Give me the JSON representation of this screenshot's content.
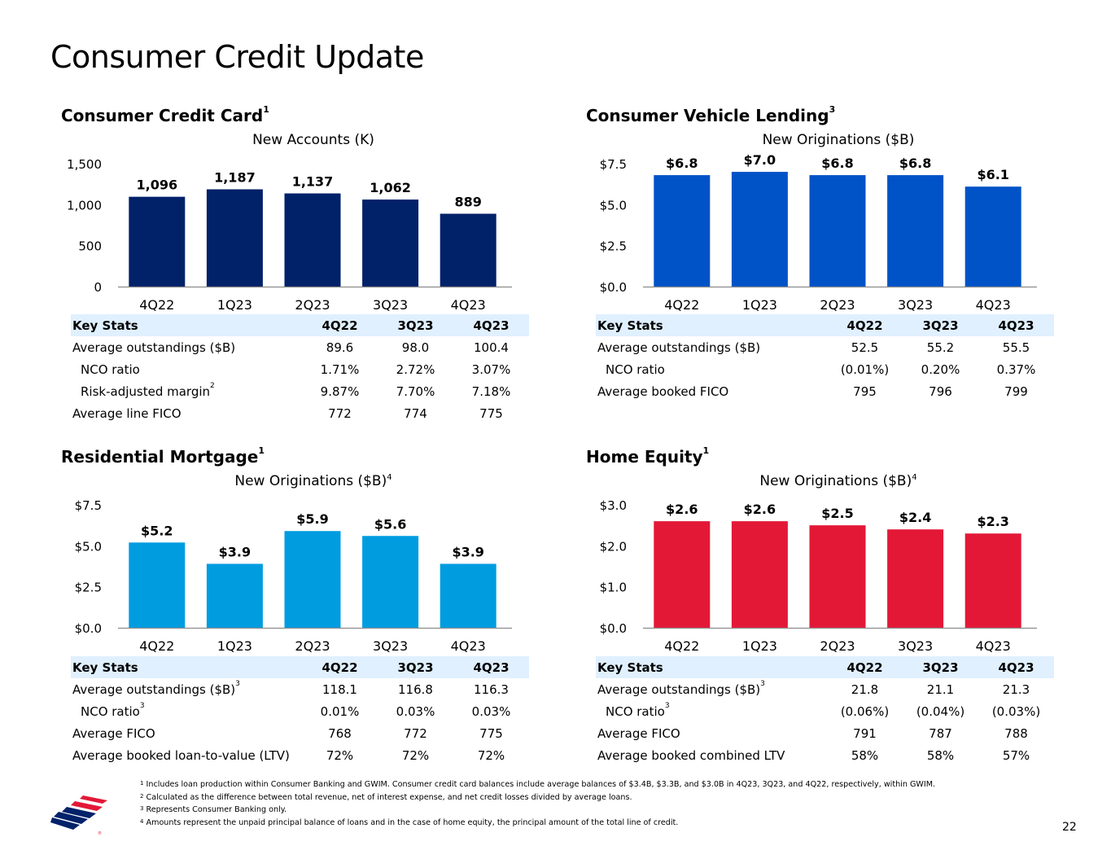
{
  "title": "Consumer Credit Update",
  "page_number": "22",
  "colors": {
    "navy": "#012169",
    "blue": "#0053c7",
    "lightblue": "#009ce0",
    "red": "#e31837",
    "stats_header_bg": "#e0f0ff"
  },
  "panels": [
    {
      "title": "Consumer Credit Card",
      "title_sup": "1",
      "chart_data": {
        "type": "bar",
        "title": "New Accounts (K)",
        "title_sup": "",
        "categories": [
          "4Q22",
          "1Q23",
          "2Q23",
          "3Q23",
          "4Q23"
        ],
        "values": [
          1096,
          1187,
          1137,
          1062,
          889
        ],
        "value_labels": [
          "1,096",
          "1,187",
          "1,137",
          "1,062",
          "889"
        ],
        "yticks": [
          "0",
          "500",
          "1,000",
          "1,500"
        ],
        "ylim": [
          0,
          1500
        ],
        "color": "#012169"
      },
      "stats": {
        "header": [
          "Key Stats",
          "4Q22",
          "3Q23",
          "4Q23"
        ],
        "rows": [
          {
            "label": "Average outstandings ($B)",
            "sup": "",
            "indent": false,
            "values": [
              "89.6",
              "98.0",
              "100.4"
            ]
          },
          {
            "label": "NCO ratio",
            "sup": "",
            "indent": true,
            "values": [
              "1.71%",
              "2.72%",
              "3.07%"
            ]
          },
          {
            "label": "Risk-adjusted margin",
            "sup": "2",
            "indent": true,
            "values": [
              "9.87%",
              "7.70%",
              "7.18%"
            ]
          },
          {
            "label": "Average line FICO",
            "sup": "",
            "indent": false,
            "values": [
              "772",
              "774",
              "775"
            ]
          }
        ]
      }
    },
    {
      "title": "Consumer Vehicle Lending",
      "title_sup": "3",
      "chart_data": {
        "type": "bar",
        "title": "New Originations ($B)",
        "title_sup": "",
        "categories": [
          "4Q22",
          "1Q23",
          "2Q23",
          "3Q23",
          "4Q23"
        ],
        "values": [
          6.8,
          7.0,
          6.8,
          6.8,
          6.1
        ],
        "value_labels": [
          "$6.8",
          "$7.0",
          "$6.8",
          "$6.8",
          "$6.1"
        ],
        "yticks": [
          "$0.0",
          "$2.5",
          "$5.0",
          "$7.5"
        ],
        "ylim": [
          0,
          7.5
        ],
        "color": "#0053c7"
      },
      "stats": {
        "header": [
          "Key Stats",
          "4Q22",
          "3Q23",
          "4Q23"
        ],
        "rows": [
          {
            "label": "Average outstandings ($B)",
            "sup": "",
            "indent": false,
            "values": [
              "52.5",
              "55.2",
              "55.5"
            ]
          },
          {
            "label": "NCO ratio",
            "sup": "",
            "indent": true,
            "values": [
              "(0.01%)",
              "0.20%",
              "0.37%"
            ]
          },
          {
            "label": "Average booked FICO",
            "sup": "",
            "indent": false,
            "values": [
              "795",
              "796",
              "799"
            ]
          }
        ]
      }
    },
    {
      "title": "Residential Mortgage",
      "title_sup": "1",
      "chart_data": {
        "type": "bar",
        "title": "New Originations ($B)",
        "title_sup": "4",
        "categories": [
          "4Q22",
          "1Q23",
          "2Q23",
          "3Q23",
          "4Q23"
        ],
        "values": [
          5.2,
          3.9,
          5.9,
          5.6,
          3.9
        ],
        "value_labels": [
          "$5.2",
          "$3.9",
          "$5.9",
          "$5.6",
          "$3.9"
        ],
        "yticks": [
          "$0.0",
          "$2.5",
          "$5.0",
          "$7.5"
        ],
        "ylim": [
          0,
          7.5
        ],
        "color": "#009ce0"
      },
      "stats": {
        "header": [
          "Key Stats",
          "4Q22",
          "3Q23",
          "4Q23"
        ],
        "rows": [
          {
            "label": "Average outstandings ($B)",
            "sup": "3",
            "indent": false,
            "values": [
              "118.1",
              "116.8",
              "116.3"
            ]
          },
          {
            "label": "NCO ratio",
            "sup": "3",
            "indent": true,
            "values": [
              "0.01%",
              "0.03%",
              "0.03%"
            ]
          },
          {
            "label": "Average FICO",
            "sup": "",
            "indent": false,
            "values": [
              "768",
              "772",
              "775"
            ]
          },
          {
            "label": "Average booked loan-to-value (LTV)",
            "sup": "",
            "indent": false,
            "values": [
              "72%",
              "72%",
              "72%"
            ]
          }
        ]
      }
    },
    {
      "title": "Home Equity",
      "title_sup": "1",
      "chart_data": {
        "type": "bar",
        "title": "New Originations ($B)",
        "title_sup": "4",
        "categories": [
          "4Q22",
          "1Q23",
          "2Q23",
          "3Q23",
          "4Q23"
        ],
        "values": [
          2.6,
          2.6,
          2.5,
          2.4,
          2.3
        ],
        "value_labels": [
          "$2.6",
          "$2.6",
          "$2.5",
          "$2.4",
          "$2.3"
        ],
        "yticks": [
          "$0.0",
          "$1.0",
          "$2.0",
          "$3.0"
        ],
        "ylim": [
          0,
          3.0
        ],
        "color": "#e31837"
      },
      "stats": {
        "header": [
          "Key Stats",
          "4Q22",
          "3Q23",
          "4Q23"
        ],
        "rows": [
          {
            "label": "Average outstandings ($B)",
            "sup": "3",
            "indent": false,
            "values": [
              "21.8",
              "21.1",
              "21.3"
            ]
          },
          {
            "label": "NCO ratio",
            "sup": "3",
            "indent": true,
            "values": [
              "(0.06%)",
              "(0.04%)",
              "(0.03%)"
            ]
          },
          {
            "label": "Average FICO",
            "sup": "",
            "indent": false,
            "values": [
              "791",
              "787",
              "788"
            ]
          },
          {
            "label": "Average booked combined LTV",
            "sup": "",
            "indent": false,
            "values": [
              "58%",
              "58%",
              "57%"
            ]
          }
        ]
      }
    }
  ],
  "footnotes": [
    {
      "mark": "1",
      "text": "Includes loan production within Consumer Banking and GWIM. Consumer credit card balances include average balances of $3.4B, $3.3B, and $3.0B in 4Q23, 3Q23, and 4Q22, respectively, within GWIM."
    },
    {
      "mark": "2",
      "text": "Calculated as the difference between total revenue, net of interest expense, and net credit losses divided by average loans."
    },
    {
      "mark": "3",
      "text": "Represents Consumer Banking only."
    },
    {
      "mark": "4",
      "text": "Amounts represent the unpaid principal balance of loans and in the case of home equity, the principal amount of the total line of credit."
    }
  ]
}
